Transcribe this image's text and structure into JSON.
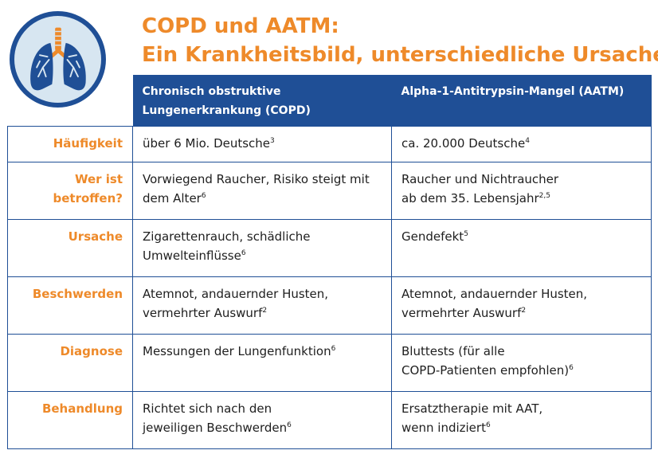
{
  "title": {
    "line1": "COPD und AATM:",
    "line2": "Ein Krankheitsbild, unterschiedliche Ursachen"
  },
  "logo": {
    "icon": "lungs-icon",
    "colors": {
      "ring": "#1f4f96",
      "fill": "#d7e6f1",
      "lungs": "#1f4f96",
      "accent": "#ee8a2a"
    }
  },
  "colors": {
    "header_bg": "#1f4f96",
    "label": "#ee8a2a",
    "border": "#1f4f96"
  },
  "table": {
    "headers": {
      "copd_line1": "Chronisch obstruktive",
      "copd_line2": "Lungenerkrankung (COPD)",
      "aatm": "Alpha-1-Antitrypsin-Mangel (AATM)"
    },
    "rows": [
      {
        "label_line1": "Häufigkeit",
        "label_line2": "",
        "copd_line1": "über 6 Mio. Deutsche",
        "copd_sup1": "3",
        "copd_line2": "",
        "copd_sup2": "",
        "aatm_line1": "ca. 20.000 Deutsche",
        "aatm_sup1": "4",
        "aatm_line2": "",
        "aatm_sup2": ""
      },
      {
        "label_line1": "Wer ist",
        "label_line2": "betroffen?",
        "copd_line1": "Vorwiegend Raucher, Risiko steigt mit",
        "copd_sup1": "",
        "copd_line2": "dem Alter",
        "copd_sup2": "6",
        "aatm_line1": "Raucher und Nichtraucher",
        "aatm_sup1": "",
        "aatm_line2": "ab dem 35. Lebensjahr",
        "aatm_sup2": "2,5"
      },
      {
        "label_line1": "Ursache",
        "label_line2": "",
        "copd_line1": "Zigarettenrauch, schädliche",
        "copd_sup1": "",
        "copd_line2": "Umwelteinflüsse",
        "copd_sup2": "6",
        "aatm_line1": "Gendefekt",
        "aatm_sup1": "5",
        "aatm_line2": "",
        "aatm_sup2": ""
      },
      {
        "label_line1": "Beschwerden",
        "label_line2": "",
        "copd_line1": "Atemnot, andauernder Husten,",
        "copd_sup1": "",
        "copd_line2": "vermehrter Auswurf",
        "copd_sup2": "2",
        "aatm_line1": "Atemnot, andauernder Husten,",
        "aatm_sup1": "",
        "aatm_line2": "vermehrter Auswurf",
        "aatm_sup2": "2"
      },
      {
        "label_line1": "Diagnose",
        "label_line2": "",
        "copd_line1": "Messungen der Lungenfunktion",
        "copd_sup1": "6",
        "copd_line2": "",
        "copd_sup2": "",
        "aatm_line1": "Bluttests (für alle",
        "aatm_sup1": "",
        "aatm_line2": "COPD-Patienten empfohlen)",
        "aatm_sup2": "6"
      },
      {
        "label_line1": "Behandlung",
        "label_line2": "",
        "copd_line1": "Richtet sich nach den",
        "copd_sup1": "",
        "copd_line2": "jeweiligen Beschwerden",
        "copd_sup2": "6",
        "aatm_line1": "Ersatztherapie mit AAT,",
        "aatm_sup1": "",
        "aatm_line2": "wenn indiziert",
        "aatm_sup2": "6"
      }
    ]
  }
}
